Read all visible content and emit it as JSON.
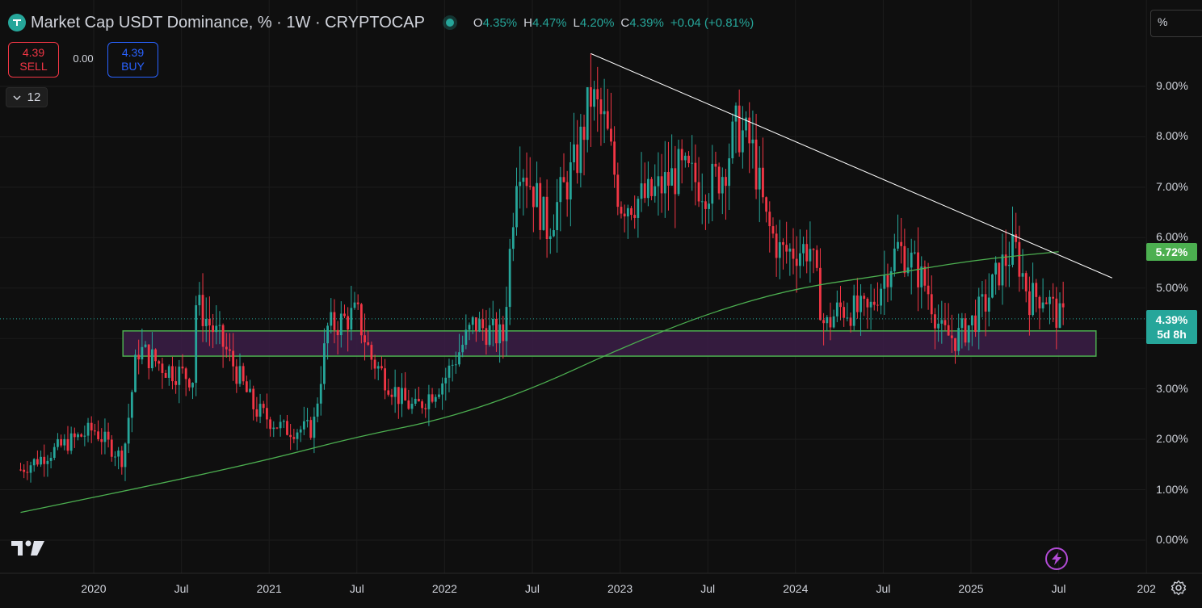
{
  "header": {
    "title": "Market Cap USDT Dominance, % · 1W · CRYPTOCAP",
    "ohlc": {
      "o_label": "O",
      "o_value": "4.35%",
      "h_label": "H",
      "h_value": "4.47%",
      "l_label": "L",
      "l_value": "4.20%",
      "c_label": "C",
      "c_value": "4.39%",
      "change": "+0.04 (+0.81%)"
    }
  },
  "trade": {
    "sell_price": "4.39",
    "sell_label": "SELL",
    "spread": "0.00",
    "buy_price": "4.39",
    "buy_label": "BUY"
  },
  "interval_selector": "12",
  "scale_mode": "%",
  "price_tags": {
    "ma_value": "5.72%",
    "last_price": "4.39%",
    "countdown": "5d 8h"
  },
  "colors": {
    "up": "#26a69a",
    "down": "#f23645",
    "ma": "#4caf50",
    "zone_fill": "#3b1d47",
    "zone_border": "#4caf50",
    "trendline": "#ffffff",
    "background": "#0f0f0f"
  },
  "icons": {
    "logo": "tether-logo-icon",
    "tradingview": "tradingview-logo-icon",
    "bolt": "lightning-icon",
    "settings": "gear-icon"
  },
  "chart_data": {
    "type": "candlestick",
    "interval": "1W",
    "title": "Market Cap USDT Dominance, %",
    "y_unit": "%",
    "ylim": [
      -0.3,
      9.9
    ],
    "y_ticks": [
      "0.00%",
      "1.00%",
      "2.00%",
      "3.00%",
      "4.00%",
      "5.00%",
      "6.00%",
      "7.00%",
      "8.00%",
      "9.00%"
    ],
    "x_ticks": [
      "2020",
      "Jul",
      "2021",
      "Jul",
      "2022",
      "Jul",
      "2023",
      "Jul",
      "2024",
      "Jul",
      "2025",
      "Jul",
      "202"
    ],
    "x_range": [
      "2019-08",
      "2026-02"
    ],
    "price_anchors": [
      [
        "2019-08",
        1.4
      ],
      [
        "2019-11",
        1.9
      ],
      [
        "2020-01",
        2.2
      ],
      [
        "2020-03",
        1.6
      ],
      [
        "2020-04",
        3.8
      ],
      [
        "2020-06",
        3.4
      ],
      [
        "2020-08",
        3.2
      ],
      [
        "2020-08",
        4.7
      ],
      [
        "2020-10",
        3.8
      ],
      [
        "2020-12",
        2.6
      ],
      [
        "2021-02",
        2.2
      ],
      [
        "2021-04",
        2.2
      ],
      [
        "2021-05",
        4.2
      ],
      [
        "2021-07",
        4.5
      ],
      [
        "2021-08",
        3.6
      ],
      [
        "2021-10",
        2.8
      ],
      [
        "2021-11",
        2.6
      ],
      [
        "2022-01",
        3.2
      ],
      [
        "2022-03",
        4.3
      ],
      [
        "2022-05",
        4.0
      ],
      [
        "2022-06",
        7.7
      ],
      [
        "2022-07",
        7.0
      ],
      [
        "2022-08",
        6.2
      ],
      [
        "2022-10",
        7.5
      ],
      [
        "2022-11",
        8.8
      ],
      [
        "2022-12",
        8.2
      ],
      [
        "2023-01",
        6.7
      ],
      [
        "2023-03",
        6.8
      ],
      [
        "2023-05",
        7.3
      ],
      [
        "2023-07",
        7.0
      ],
      [
        "2023-08",
        7.3
      ],
      [
        "2023-09",
        8.2
      ],
      [
        "2023-10",
        7.8
      ],
      [
        "2023-11",
        6.3
      ],
      [
        "2023-12",
        5.7
      ],
      [
        "2024-02",
        5.8
      ],
      [
        "2024-03",
        4.2
      ],
      [
        "2024-04",
        4.6
      ],
      [
        "2024-06",
        4.5
      ],
      [
        "2024-07",
        5.2
      ],
      [
        "2024-08",
        5.8
      ],
      [
        "2024-09",
        5.5
      ],
      [
        "2024-10",
        5.0
      ],
      [
        "2024-11",
        4.1
      ],
      [
        "2024-12",
        4.0
      ],
      [
        "2025-01",
        4.3
      ],
      [
        "2025-02",
        4.7
      ],
      [
        "2025-03",
        5.4
      ],
      [
        "2025-04",
        5.8
      ],
      [
        "2025-05",
        4.8
      ],
      [
        "2025-06",
        4.9
      ],
      [
        "2025-07",
        4.39
      ]
    ],
    "moving_average": {
      "value_at_last": 5.72,
      "points": [
        [
          "2019-08",
          0.55
        ],
        [
          "2020-06",
          1.15
        ],
        [
          "2021-01",
          1.6
        ],
        [
          "2021-07",
          2.05
        ],
        [
          "2022-01",
          2.4
        ],
        [
          "2022-07",
          3.0
        ],
        [
          "2023-01",
          3.8
        ],
        [
          "2023-07",
          4.5
        ],
        [
          "2024-01",
          5.0
        ],
        [
          "2024-07",
          5.25
        ],
        [
          "2025-01",
          5.55
        ],
        [
          "2025-07",
          5.72
        ]
      ]
    },
    "support_zone": {
      "start": "2020-03",
      "end": "2025-09",
      "low": 3.65,
      "high": 4.15
    },
    "trendline": {
      "start": [
        "2022-11",
        9.65
      ],
      "end": [
        "2025-09",
        5.2
      ]
    },
    "last": {
      "open": 4.35,
      "high": 4.47,
      "low": 4.2,
      "close": 4.39,
      "change": 0.04,
      "change_pct": 0.81
    },
    "grid": true
  }
}
